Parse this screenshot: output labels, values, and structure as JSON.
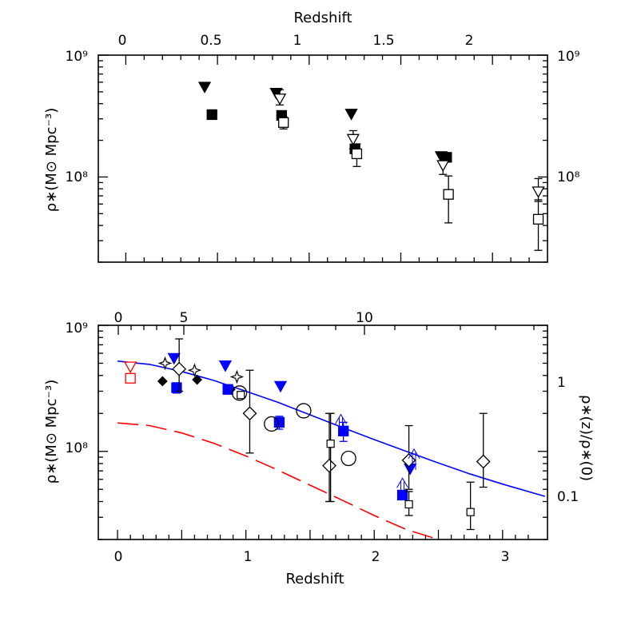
{
  "chart_data": [
    {
      "type": "scatter",
      "title": "",
      "xlabel": "",
      "top_xlabel": "Redshift",
      "ylabel": "ρ∗(M⊙ Mpc⁻³)",
      "yscale": "log",
      "xlim": [
        -0.15,
        2.3
      ],
      "ylim": [
        20000000,
        1000000000
      ],
      "top_ticks": [
        "0",
        "0.5",
        "1",
        "1.5",
        "2"
      ],
      "top_tick_values": [
        0,
        0.5,
        1,
        1.5,
        2
      ],
      "left_ticks": [
        "10⁹",
        "10⁸"
      ],
      "right_ticks": [
        "10⁹",
        "10⁸"
      ],
      "series": [
        {
          "marker": "filled-triangle-down",
          "points": [
            {
              "x": 0.43,
              "y": 550000000
            },
            {
              "x": 0.82,
              "y": 490000000
            },
            {
              "x": 1.23,
              "y": 330000000
            },
            {
              "x": 1.72,
              "y": 148000000
            }
          ]
        },
        {
          "marker": "filled-square",
          "points": [
            {
              "x": 0.47,
              "y": 325000000
            },
            {
              "x": 0.85,
              "y": 320000000
            },
            {
              "x": 1.25,
              "y": 170000000
            },
            {
              "x": 1.75,
              "y": 145000000
            }
          ]
        },
        {
          "marker": "open-triangle-down",
          "points": [
            {
              "x": 0.84,
              "y": 440000000,
              "err": [
                390000000,
                520000000
              ]
            },
            {
              "x": 1.24,
              "y": 205000000,
              "err": [
                170000000,
                240000000
              ]
            },
            {
              "x": 1.73,
              "y": 125000000,
              "err": [
                105000000,
                145000000
              ]
            },
            {
              "x": 2.25,
              "y": 76000000,
              "err": [
                63000000,
                97000000
              ]
            }
          ]
        },
        {
          "marker": "open-square",
          "points": [
            {
              "x": 0.86,
              "y": 280000000,
              "err": [
                248000000,
                312000000
              ]
            },
            {
              "x": 1.26,
              "y": 155000000,
              "err": [
                122000000,
                187000000
              ]
            },
            {
              "x": 1.76,
              "y": 72000000,
              "err": [
                42000000,
                102000000
              ]
            },
            {
              "x": 2.25,
              "y": 45000000,
              "err": [
                25000000,
                65000000
              ]
            }
          ]
        }
      ]
    },
    {
      "type": "scatter",
      "title": "",
      "xlabel": "Redshift",
      "top_axis_note": "",
      "ylabel": "ρ∗(M⊙ Mpc⁻³)",
      "right_ylabel": "ρ∗(z)/ρ∗(0)",
      "yscale": "log",
      "xlim": [
        -0.15,
        3.35
      ],
      "ylim": [
        20000000,
        1000000000
      ],
      "bottom_ticks": [
        "0",
        "1",
        "2",
        "3"
      ],
      "bottom_tick_values": [
        0,
        1,
        2,
        3
      ],
      "top_ticks": [
        "0",
        "5",
        "10"
      ],
      "top_tick_values": [
        0,
        5,
        10
      ],
      "left_ticks": [
        "10⁹",
        "10⁸"
      ],
      "right_ticks": [
        "1",
        "0.1"
      ],
      "lines": [
        {
          "color": "#0000ff",
          "style": "solid",
          "points": [
            {
              "x": 0,
              "y": 520000000
            },
            {
              "x": 0.25,
              "y": 490000000
            },
            {
              "x": 0.5,
              "y": 430000000
            },
            {
              "x": 0.75,
              "y": 365000000
            },
            {
              "x": 1.0,
              "y": 300000000
            },
            {
              "x": 1.25,
              "y": 245000000
            },
            {
              "x": 1.5,
              "y": 195000000
            },
            {
              "x": 1.75,
              "y": 155000000
            },
            {
              "x": 2.0,
              "y": 124000000
            },
            {
              "x": 2.25,
              "y": 100000000
            },
            {
              "x": 2.5,
              "y": 81000000
            },
            {
              "x": 2.75,
              "y": 66000000
            },
            {
              "x": 3.0,
              "y": 55000000
            },
            {
              "x": 3.33,
              "y": 44000000
            }
          ]
        },
        {
          "color": "#ff0000",
          "style": "dashed",
          "points": [
            {
              "x": 0,
              "y": 168000000
            },
            {
              "x": 0.25,
              "y": 160000000
            },
            {
              "x": 0.5,
              "y": 140000000
            },
            {
              "x": 0.75,
              "y": 116000000
            },
            {
              "x": 1.0,
              "y": 92000000
            },
            {
              "x": 1.25,
              "y": 71000000
            },
            {
              "x": 1.5,
              "y": 54000000
            },
            {
              "x": 1.75,
              "y": 41000000
            },
            {
              "x": 2.0,
              "y": 31000000
            },
            {
              "x": 2.25,
              "y": 24000000
            },
            {
              "x": 2.5,
              "y": 20000000
            }
          ]
        }
      ],
      "series": [
        {
          "marker": "open-triangle-down",
          "color": "#ff0000",
          "points": [
            {
              "x": 0.1,
              "y": 470000000
            }
          ]
        },
        {
          "marker": "open-square",
          "color": "#ff0000",
          "points": [
            {
              "x": 0.1,
              "y": 380000000
            }
          ]
        },
        {
          "marker": "filled-diamond",
          "color": "#000000",
          "points": [
            {
              "x": 0.35,
              "y": 360000000
            },
            {
              "x": 0.62,
              "y": 370000000
            },
            {
              "x": 0.88,
              "y": 310000000
            }
          ]
        },
        {
          "marker": "open-star",
          "color": "#000000",
          "points": [
            {
              "x": 0.37,
              "y": 500000000
            },
            {
              "x": 0.6,
              "y": 440000000
            },
            {
              "x": 0.93,
              "y": 390000000
            }
          ]
        },
        {
          "marker": "filled-triangle-down",
          "color": "#0000ff",
          "points": [
            {
              "x": 0.44,
              "y": 550000000
            },
            {
              "x": 0.84,
              "y": 480000000
            },
            {
              "x": 1.27,
              "y": 330000000
            },
            {
              "x": 2.28,
              "y": 73000000
            }
          ]
        },
        {
          "marker": "filled-square",
          "color": "#0000ff",
          "points": [
            {
              "x": 0.46,
              "y": 320000000,
              "err": [
                290000000,
                350000000
              ]
            },
            {
              "x": 0.86,
              "y": 310000000,
              "err": [
                285000000,
                335000000
              ]
            },
            {
              "x": 1.26,
              "y": 170000000,
              "err": [
                150000000,
                190000000
              ]
            },
            {
              "x": 1.76,
              "y": 145000000,
              "err": [
                120000000,
                170000000
              ]
            },
            {
              "x": 2.22,
              "y": 45000000
            }
          ]
        },
        {
          "marker": "open-diamond",
          "color": "#000000",
          "points": [
            {
              "x": 0.48,
              "y": 450000000,
              "err": [
                300000000,
                780000000
              ]
            },
            {
              "x": 1.03,
              "y": 200000000,
              "err": [
                97000000,
                440000000
              ]
            },
            {
              "x": 1.65,
              "y": 77000000,
              "err": [
                40000000,
                200000000
              ]
            },
            {
              "x": 2.27,
              "y": 85000000,
              "err": [
                50000000,
                160000000
              ]
            },
            {
              "x": 2.85,
              "y": 83000000,
              "err": [
                52000000,
                200000000
              ]
            }
          ]
        },
        {
          "marker": "open-circle",
          "color": "#000000",
          "points": [
            {
              "x": 0.95,
              "y": 290000000
            },
            {
              "x": 1.2,
              "y": 165000000
            },
            {
              "x": 1.45,
              "y": 210000000
            },
            {
              "x": 1.8,
              "y": 88000000
            }
          ]
        },
        {
          "marker": "open-square-small",
          "color": "#000000",
          "points": [
            {
              "x": 0.96,
              "y": 280000000
            },
            {
              "x": 1.66,
              "y": 115000000,
              "err": [
                40000000,
                200000000
              ]
            },
            {
              "x": 2.27,
              "y": 38000000,
              "err": [
                31000000,
                48000000
              ]
            },
            {
              "x": 2.75,
              "y": 33000000,
              "err": [
                24000000,
                57000000
              ]
            }
          ]
        }
      ],
      "lower_limit_arrows": [
        {
          "x": 1.74,
          "y": 160000000,
          "color": "#0000ff"
        },
        {
          "x": 2.22,
          "y": 50000000,
          "color": "#0000ff"
        },
        {
          "x": 2.31,
          "y": 85000000,
          "color": "#0000ff"
        }
      ]
    }
  ]
}
